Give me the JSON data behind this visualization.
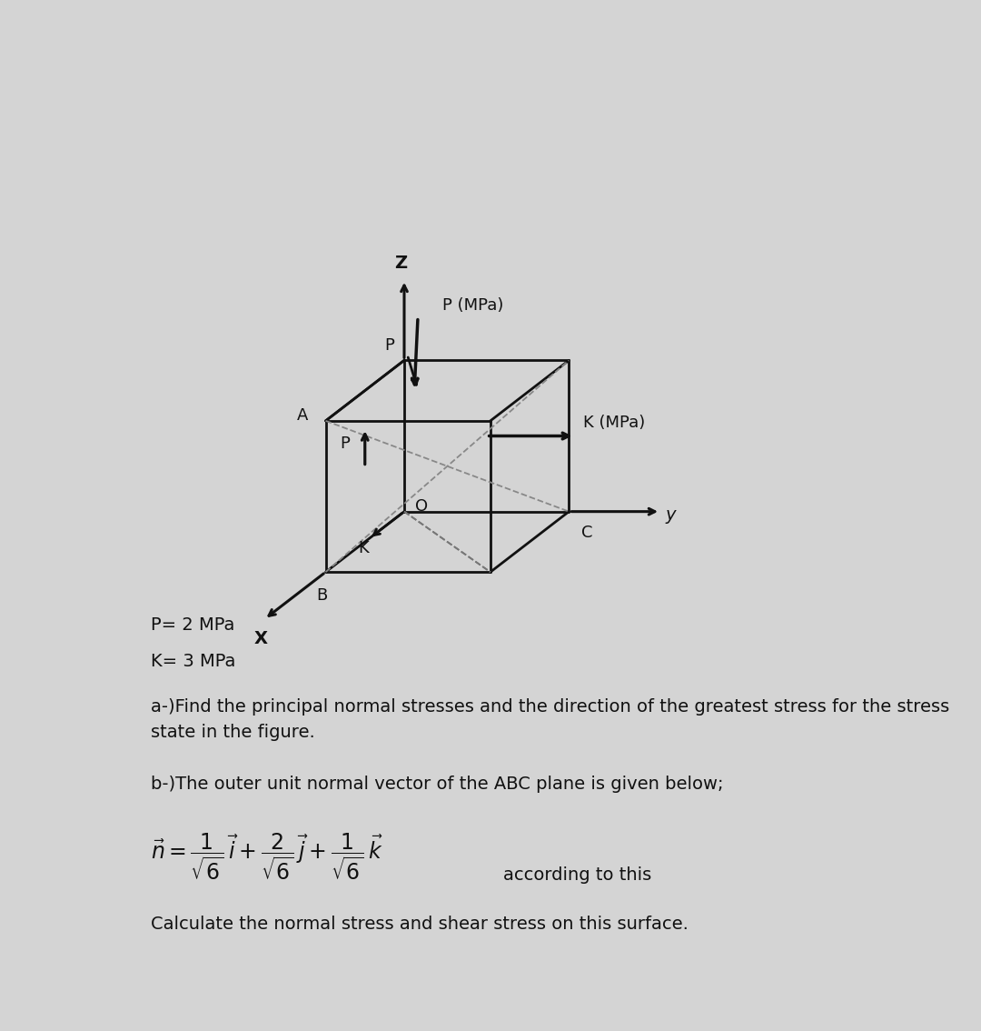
{
  "bg_color": "#d4d4d4",
  "text_color": "#111111",
  "line_color": "#111111",
  "body_fontsize": 14,
  "cube_lw": 2.0,
  "dash_lw": 1.3,
  "arrow_lw": 2.2,
  "P_val": "P= 2 MPa",
  "K_val": "K= 3 MPa",
  "question_a": "a-)Find the principal normal stresses and the direction of the greatest stress for the stress\nstate in the figure.",
  "question_b": "b-)The outer unit normal vector of the ABC plane is given below;",
  "question_c": "Calculate the normal stress and shear stress on this surface.",
  "according": "according to this",
  "ox": 4.0,
  "oy": 5.8,
  "ix": -0.62,
  "jx": -0.48,
  "iy": 1.3,
  "jy": 0.0,
  "iz": 0.0,
  "jz": 1.2,
  "cs": 1.8
}
